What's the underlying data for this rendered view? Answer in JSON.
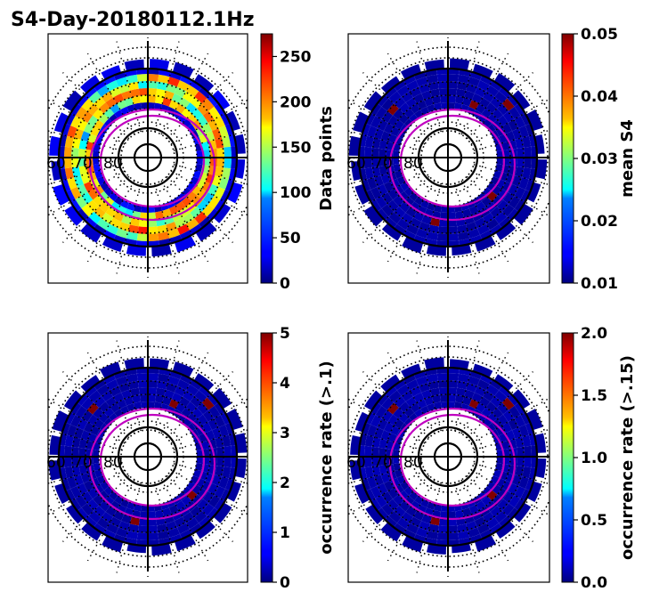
{
  "figure": {
    "title": "S4-Day-20180112.1Hz"
  },
  "colormap": "jet",
  "chart_data": [
    {
      "type": "heatmap",
      "projection": "polar",
      "colorbar_label": "Data points",
      "colorbar_range": [
        0,
        275
      ],
      "colorbar_ticks": [
        "0",
        "50",
        "100",
        "150",
        "200",
        "250"
      ],
      "colorbar_tick_values": [
        0,
        50,
        100,
        150,
        200,
        250
      ],
      "latitude_labels": [
        "60",
        "70",
        "80"
      ],
      "typical_value": 110
    },
    {
      "type": "heatmap",
      "projection": "polar",
      "colorbar_label": "mean S4",
      "colorbar_range": [
        0.01,
        0.05
      ],
      "colorbar_ticks": [
        "0.01",
        "0.02",
        "0.03",
        "0.04",
        "0.05"
      ],
      "colorbar_tick_values": [
        0.01,
        0.02,
        0.03,
        0.04,
        0.05
      ],
      "latitude_labels": [
        "60",
        "70",
        "80"
      ],
      "typical_value": 0.0115
    },
    {
      "type": "heatmap",
      "projection": "polar",
      "colorbar_label": "occurrence rate (>.1)",
      "colorbar_range": [
        0,
        5
      ],
      "colorbar_ticks": [
        "0",
        "1",
        "2",
        "3",
        "4",
        "5"
      ],
      "colorbar_tick_values": [
        0,
        1,
        2,
        3,
        4,
        5
      ],
      "latitude_labels": [
        "60",
        "70",
        "80"
      ],
      "typical_value": 0.2
    },
    {
      "type": "heatmap",
      "projection": "polar",
      "colorbar_label": "occurrence rate (>.15)",
      "colorbar_range": [
        0,
        2
      ],
      "colorbar_ticks": [
        "0.0",
        "0.5",
        "1.0",
        "1.5",
        "2.0"
      ],
      "colorbar_tick_values": [
        0,
        0.5,
        1,
        1.5,
        2
      ],
      "latitude_labels": [
        "60",
        "70",
        "80"
      ],
      "typical_value": 0.08
    }
  ]
}
